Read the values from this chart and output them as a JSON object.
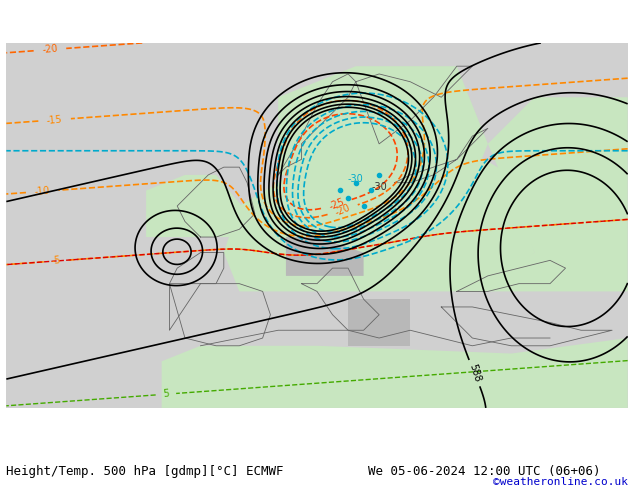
{
  "title_left": "Height/Temp. 500 hPa [gdmp][°C] ECMWF",
  "title_right": "We 05-06-2024 12:00 UTC (06+06)",
  "credit": "©weatheronline.co.uk",
  "figsize": [
    6.34,
    4.9
  ],
  "dpi": 100,
  "bg_color": "#d0d0d0",
  "map_bg_green": "#c8e6c0",
  "bottom_bar_height": 0.08,
  "title_fontsize": 9,
  "credit_fontsize": 8,
  "credit_color": "#0000cc"
}
